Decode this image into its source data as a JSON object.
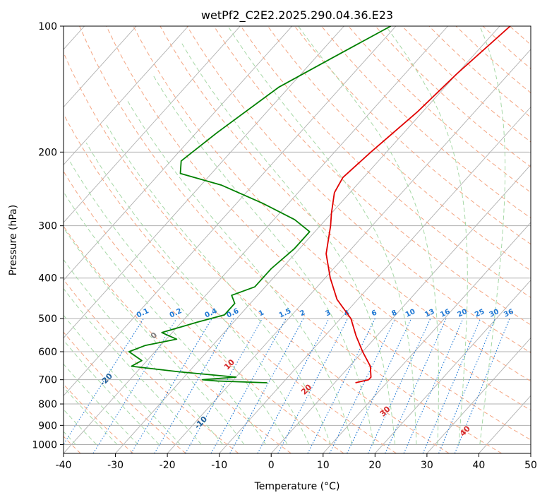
{
  "chart_data": {
    "type": "line",
    "diagram": "skew-T log-P",
    "title": "wetPf2_C2E2.2025.290.04.36.E23",
    "xlabel": "Temperature (°C)",
    "ylabel": "Pressure (hPa)",
    "xlim": [
      -40,
      50
    ],
    "ylim": [
      1050,
      100
    ],
    "x_ticks": [
      -40,
      -30,
      -20,
      -10,
      0,
      10,
      20,
      30,
      40,
      50
    ],
    "y_ticks": [
      100,
      200,
      300,
      400,
      500,
      600,
      700,
      800,
      900,
      1000
    ],
    "grid": true,
    "series": [
      {
        "name": "temperature",
        "color": "#e00000",
        "points": [
          {
            "p": 100,
            "t": -28
          },
          {
            "p": 130,
            "t": -30
          },
          {
            "p": 160,
            "t": -31
          },
          {
            "p": 200,
            "t": -33
          },
          {
            "p": 230,
            "t": -34
          },
          {
            "p": 250,
            "t": -33
          },
          {
            "p": 280,
            "t": -30
          },
          {
            "p": 300,
            "t": -28
          },
          {
            "p": 350,
            "t": -24
          },
          {
            "p": 400,
            "t": -19
          },
          {
            "p": 450,
            "t": -14
          },
          {
            "p": 500,
            "t": -8
          },
          {
            "p": 550,
            "t": -4
          },
          {
            "p": 600,
            "t": 0
          },
          {
            "p": 650,
            "t": 4
          },
          {
            "p": 690,
            "t": 6
          },
          {
            "p": 700,
            "t": 6
          },
          {
            "p": 712,
            "t": 4
          }
        ]
      },
      {
        "name": "dewpoint",
        "color": "#008000",
        "points": [
          {
            "p": 100,
            "t": -51
          },
          {
            "p": 120,
            "t": -57
          },
          {
            "p": 140,
            "t": -62
          },
          {
            "p": 180,
            "t": -66
          },
          {
            "p": 210,
            "t": -68
          },
          {
            "p": 225,
            "t": -66
          },
          {
            "p": 240,
            "t": -56
          },
          {
            "p": 265,
            "t": -45
          },
          {
            "p": 290,
            "t": -36
          },
          {
            "p": 310,
            "t": -31
          },
          {
            "p": 340,
            "t": -31
          },
          {
            "p": 380,
            "t": -32
          },
          {
            "p": 420,
            "t": -32
          },
          {
            "p": 440,
            "t": -35
          },
          {
            "p": 460,
            "t": -33
          },
          {
            "p": 490,
            "t": -33
          },
          {
            "p": 510,
            "t": -37
          },
          {
            "p": 540,
            "t": -42
          },
          {
            "p": 560,
            "t": -38
          },
          {
            "p": 580,
            "t": -43
          },
          {
            "p": 600,
            "t": -45
          },
          {
            "p": 630,
            "t": -41
          },
          {
            "p": 650,
            "t": -42
          },
          {
            "p": 670,
            "t": -32
          },
          {
            "p": 690,
            "t": -20
          },
          {
            "p": 700,
            "t": -26
          },
          {
            "p": 705,
            "t": -23
          },
          {
            "p": 712,
            "t": -13
          }
        ]
      }
    ],
    "dry_adiabats_c": [
      -100,
      -90,
      -80,
      -70,
      -60,
      -50,
      -40,
      -30,
      -20,
      -10,
      0,
      10,
      20,
      30,
      40
    ],
    "moist_adiabats_c": [
      -20,
      -10,
      0,
      10,
      20,
      30
    ],
    "mixing_ratio_labels": [
      "0.1",
      "0.2",
      "0.4",
      "0.6",
      "1",
      "1.5",
      "2",
      "3",
      "4",
      "6",
      "8",
      "10",
      "13",
      "16",
      "20",
      "25",
      "30",
      "36"
    ],
    "mixing_ratio_values": [
      0.1,
      0.2,
      0.4,
      0.6,
      1,
      1.5,
      2,
      3,
      4,
      6,
      8,
      10,
      13,
      16,
      20,
      25,
      30,
      36
    ],
    "colors": {
      "isotherm": "#b0b0b0",
      "dry_adiabat": "#f4a582",
      "moist_adiabat": "#a6d8a6",
      "mixing_ratio": "#1f78d4",
      "dry_label": "#1f5f9a",
      "moist_label": "#d62728",
      "zero_label": "#808080"
    }
  }
}
